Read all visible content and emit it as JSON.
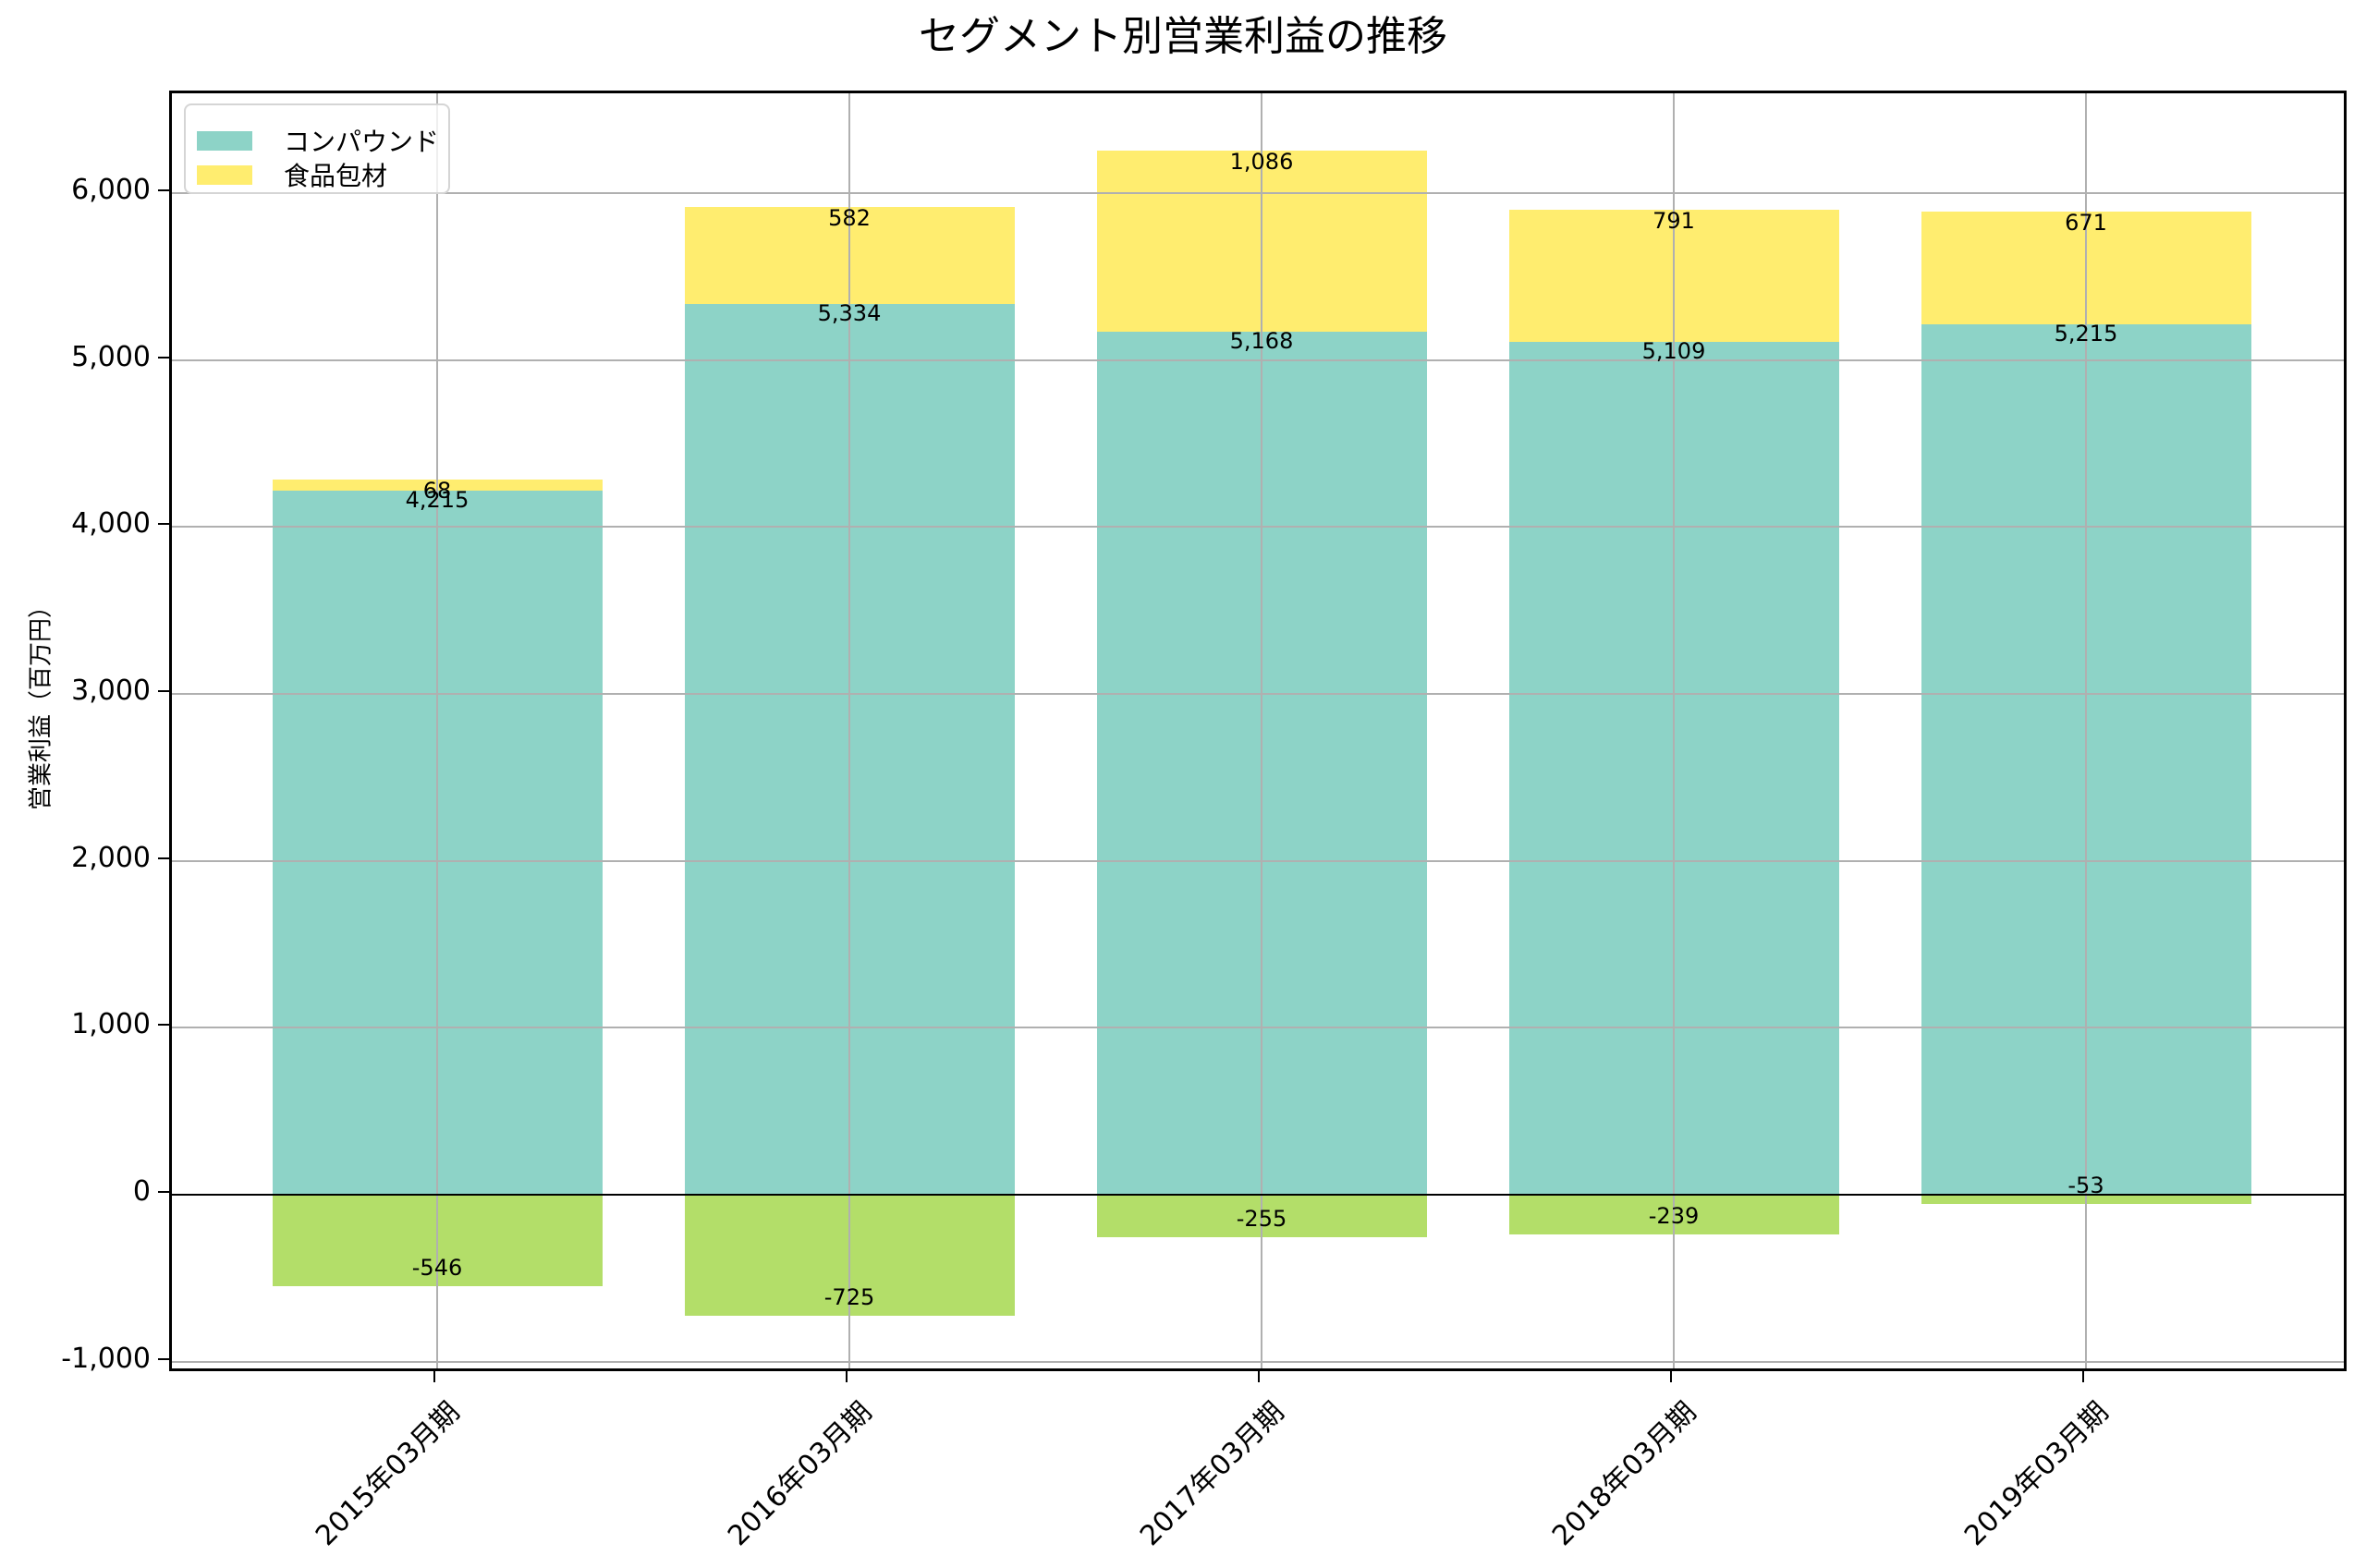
{
  "chart_data": {
    "type": "bar",
    "stacked": true,
    "title": "セグメント別営業利益の推移",
    "xlabel": "",
    "ylabel": "営業利益（百万円）",
    "categories": [
      "2015年03月期",
      "2016年03月期",
      "2017年03月期",
      "2018年03月期",
      "2019年03月期"
    ],
    "series": [
      {
        "name": "コンパウンド",
        "color": "#8dd3c7",
        "values": [
          4215,
          5334,
          5168,
          5109,
          5215
        ],
        "labels": [
          "4,215",
          "5,334",
          "5,168",
          "5,109",
          "5,215"
        ]
      },
      {
        "name": "食品包材",
        "color": "#ffed6f",
        "values": [
          68,
          582,
          1086,
          791,
          671
        ],
        "labels": [
          "68",
          "582",
          "1,086",
          "791",
          "671"
        ]
      },
      {
        "name": "",
        "color": "#b3de69",
        "values": [
          -546,
          -725,
          -255,
          -239,
          -53
        ],
        "labels": [
          "-546",
          "-725",
          "-255",
          "-239",
          "-53"
        ],
        "in_legend": false
      }
    ],
    "ylim": [
      -1080,
      6600
    ],
    "yticks": [
      -1000,
      0,
      1000,
      2000,
      3000,
      4000,
      5000,
      6000
    ],
    "ytick_labels": [
      "-1,000",
      "0",
      "1,000",
      "2,000",
      "3,000",
      "4,000",
      "5,000",
      "6,000"
    ],
    "grid": true,
    "legend_position": "upper left",
    "xtick_rotation": 45
  },
  "legend": {
    "items": [
      {
        "label": "コンパウンド",
        "color": "#8dd3c7"
      },
      {
        "label": "食品包材",
        "color": "#ffed6f"
      }
    ]
  }
}
